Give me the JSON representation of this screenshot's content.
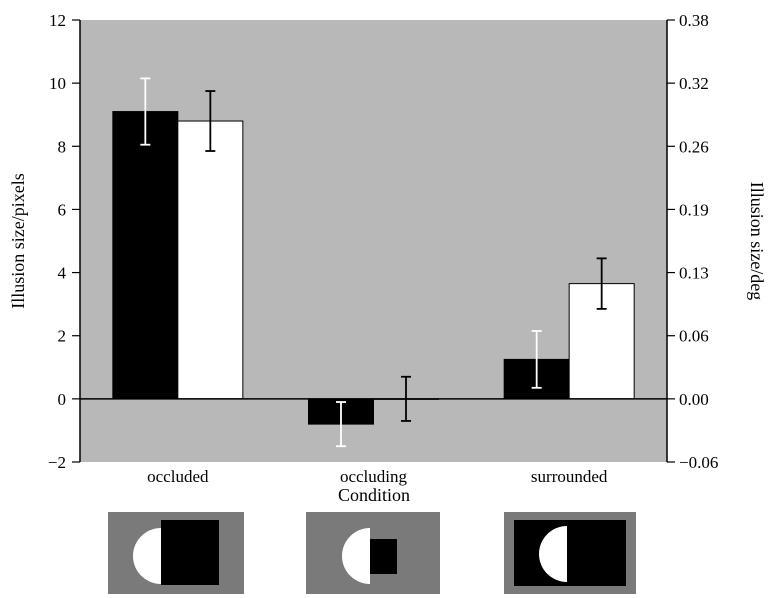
{
  "chart_data": {
    "type": "bar",
    "xlabel": "Condition",
    "ylabel": "Illusion size/pixels",
    "ylabel_right": "Illusion size/deg",
    "ylim": [
      -2,
      12
    ],
    "yticks": [
      "−2",
      "0",
      "2",
      "4",
      "6",
      "8",
      "10",
      "12"
    ],
    "yticks_right": [
      "−0.06",
      "0.00",
      "0.06",
      "0.13",
      "0.19",
      "0.26",
      "0.32",
      "0.38"
    ],
    "categories": [
      "occluded",
      "occluding",
      "surrounded"
    ],
    "series": [
      {
        "color": "#000000",
        "values": [
          9.1,
          -0.8,
          1.25
        ],
        "errors": [
          1.05,
          0.7,
          0.9
        ],
        "error_color": "#ffffff"
      },
      {
        "color": "#ffffff",
        "values": [
          8.8,
          0.0,
          3.65
        ],
        "errors": [
          0.95,
          0.7,
          0.8
        ],
        "error_color": "#000000"
      }
    ],
    "plot_background": "#b8b8b8",
    "grid": false,
    "stimulus_icons": [
      "large-occluder",
      "small-occluder",
      "surround"
    ]
  }
}
